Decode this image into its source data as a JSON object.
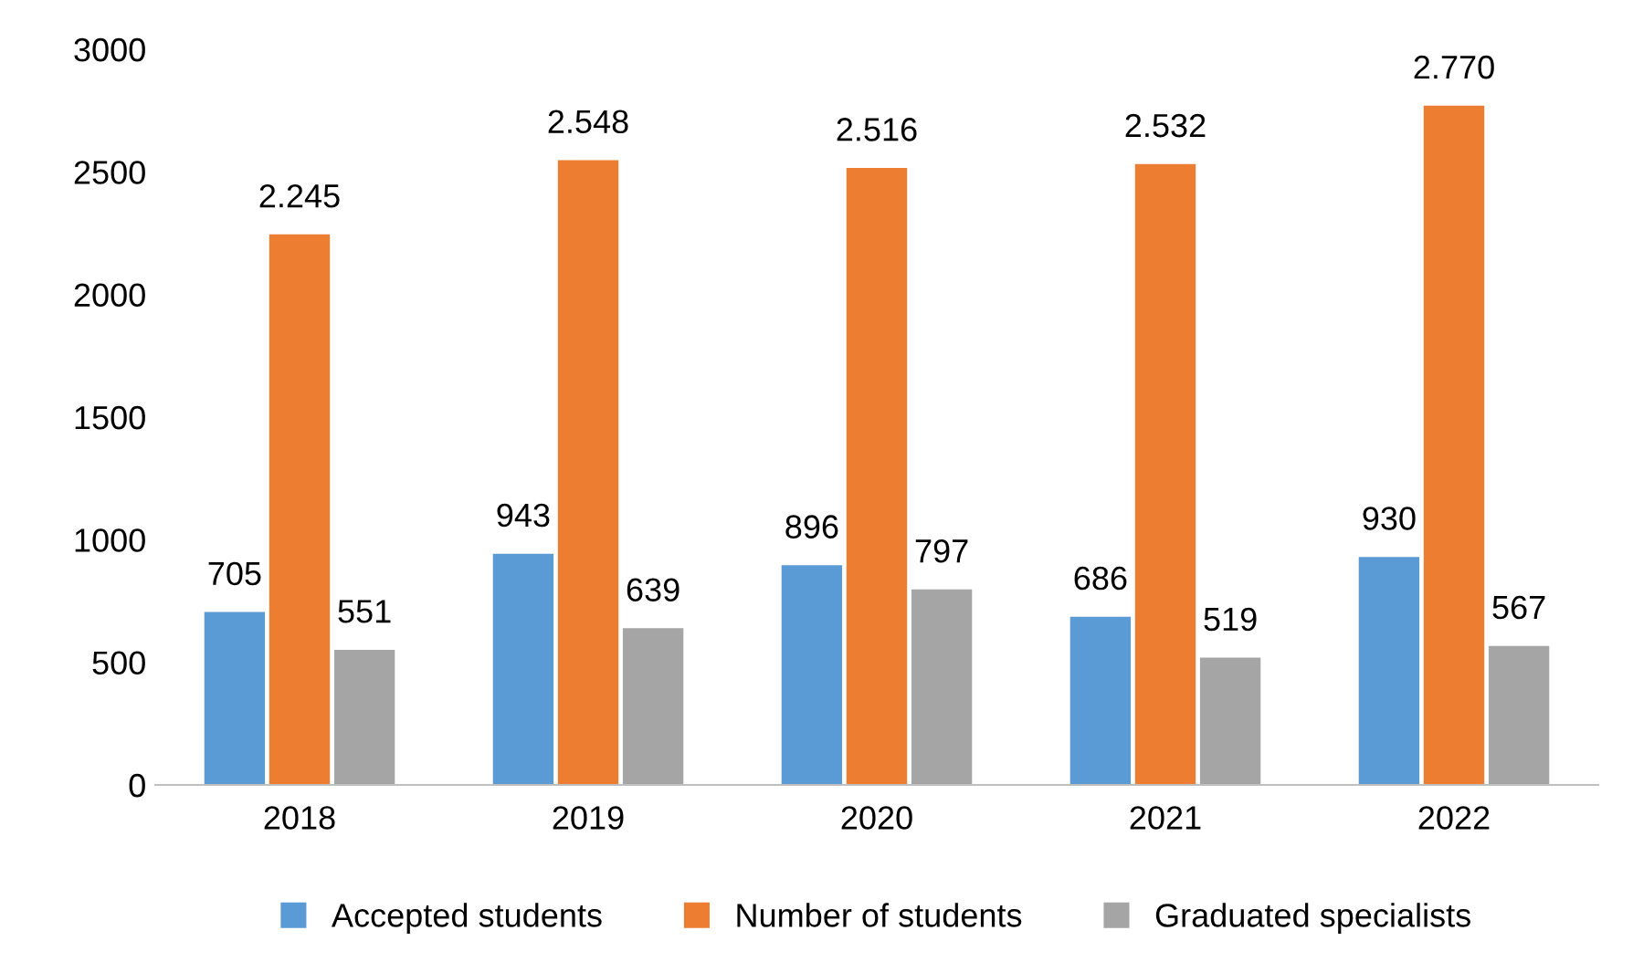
{
  "chart_data": {
    "type": "bar",
    "categories": [
      "2018",
      "2019",
      "2020",
      "2021",
      "2022"
    ],
    "series": [
      {
        "name": "Accepted students",
        "color": "#5b9bd5",
        "values": [
          705,
          943,
          896,
          686,
          930
        ],
        "value_labels": [
          "705",
          "943",
          "896",
          "686",
          "930"
        ]
      },
      {
        "name": "Number of students",
        "color": "#ed7d31",
        "values": [
          2245,
          2548,
          2516,
          2532,
          2770
        ],
        "value_labels": [
          "2.245",
          "2.548",
          "2.516",
          "2.532",
          "2.770"
        ]
      },
      {
        "name": "Graduated specialists",
        "color": "#a5a5a5",
        "values": [
          551,
          639,
          797,
          519,
          567
        ],
        "value_labels": [
          "551",
          "639",
          "797",
          "519",
          "567"
        ]
      }
    ],
    "ylim": [
      0,
      3000
    ],
    "yticks": [
      0,
      500,
      1000,
      1500,
      2000,
      2500,
      3000
    ],
    "grid": false,
    "legend": "bottom"
  }
}
